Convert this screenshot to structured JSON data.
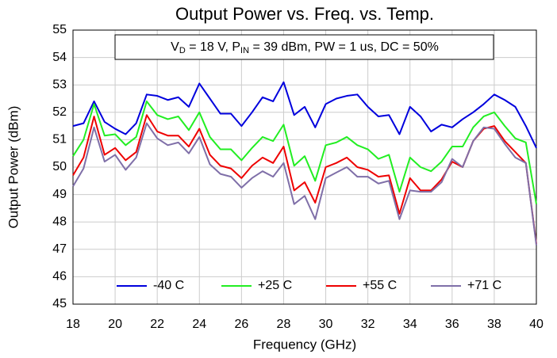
{
  "chart_data": {
    "type": "line",
    "title": "Output Power vs. Freq. vs. Temp.",
    "annotation": [
      "V",
      "D",
      " = 18 V, P",
      "IN",
      " = 39 dBm, PW = 1 us, DC = 50%"
    ],
    "x_label": "Frequency (GHz)",
    "y_label": "Output Power (dBm)",
    "x": [
      18,
      18.5,
      19,
      19.5,
      20,
      20.5,
      21,
      21.5,
      22,
      22.5,
      23,
      23.5,
      24,
      24.5,
      25,
      25.5,
      26,
      26.5,
      27,
      27.5,
      28,
      28.5,
      29,
      29.5,
      30,
      30.5,
      31,
      31.5,
      32,
      32.5,
      33,
      33.5,
      34,
      34.5,
      35,
      35.5,
      36,
      36.5,
      37,
      37.5,
      38,
      38.5,
      39,
      39.5,
      40
    ],
    "series": [
      {
        "name": "-40 C",
        "color": "#0000dd",
        "values": [
          51.5,
          51.6,
          52.4,
          51.65,
          51.4,
          51.2,
          51.6,
          52.65,
          52.6,
          52.45,
          52.55,
          52.2,
          53.05,
          52.5,
          51.95,
          51.95,
          51.5,
          52.0,
          52.55,
          52.4,
          53.1,
          51.9,
          52.2,
          51.45,
          52.3,
          52.5,
          52.6,
          52.65,
          52.2,
          51.85,
          51.9,
          51.2,
          52.2,
          51.85,
          51.3,
          51.55,
          51.45,
          51.75,
          52.0,
          52.3,
          52.65,
          52.45,
          52.2,
          51.5,
          50.7
        ]
      },
      {
        "name": "+25 C",
        "color": "#22ee22",
        "values": [
          50.4,
          51.0,
          52.3,
          51.15,
          51.2,
          50.8,
          51.1,
          52.4,
          51.9,
          51.75,
          51.85,
          51.35,
          52.0,
          51.1,
          50.65,
          50.65,
          50.25,
          50.7,
          51.1,
          50.95,
          51.55,
          50.05,
          50.4,
          49.5,
          50.8,
          50.9,
          51.1,
          50.8,
          50.65,
          50.3,
          50.45,
          49.1,
          50.35,
          50.0,
          49.85,
          50.2,
          50.75,
          50.75,
          51.45,
          51.85,
          52.0,
          51.5,
          51.05,
          50.9,
          48.65
        ]
      },
      {
        "name": "+55 C",
        "color": "#ee0000",
        "values": [
          49.7,
          50.35,
          51.85,
          50.45,
          50.7,
          50.25,
          50.55,
          51.9,
          51.3,
          51.15,
          51.15,
          50.75,
          51.4,
          50.45,
          50.05,
          49.95,
          49.6,
          50.05,
          50.35,
          50.15,
          50.75,
          49.15,
          49.45,
          48.7,
          50.0,
          50.15,
          50.35,
          50.0,
          49.9,
          49.65,
          49.7,
          48.3,
          49.6,
          49.15,
          49.15,
          49.55,
          50.2,
          50.0,
          50.95,
          51.4,
          51.5,
          50.95,
          50.55,
          50.15,
          47.2
        ]
      },
      {
        "name": "+71 C",
        "color": "#7f6fa8",
        "values": [
          49.3,
          49.95,
          51.45,
          50.2,
          50.45,
          49.9,
          50.35,
          51.6,
          51.05,
          50.8,
          50.9,
          50.5,
          51.1,
          50.1,
          49.75,
          49.65,
          49.25,
          49.6,
          49.85,
          49.65,
          50.15,
          48.65,
          48.95,
          48.1,
          49.6,
          49.8,
          50.0,
          49.65,
          49.65,
          49.4,
          49.5,
          48.1,
          49.15,
          49.1,
          49.1,
          49.45,
          50.3,
          50.0,
          50.95,
          51.45,
          51.4,
          50.85,
          50.35,
          50.15,
          47.15
        ]
      }
    ],
    "xlim": [
      18,
      40
    ],
    "xticks": [
      18,
      20,
      22,
      24,
      26,
      28,
      30,
      32,
      34,
      36,
      38,
      40
    ],
    "ylim": [
      45,
      55
    ],
    "yticks": [
      45,
      46,
      47,
      48,
      49,
      50,
      51,
      52,
      53,
      54,
      55
    ],
    "grid": true,
    "legend": "bottom"
  }
}
